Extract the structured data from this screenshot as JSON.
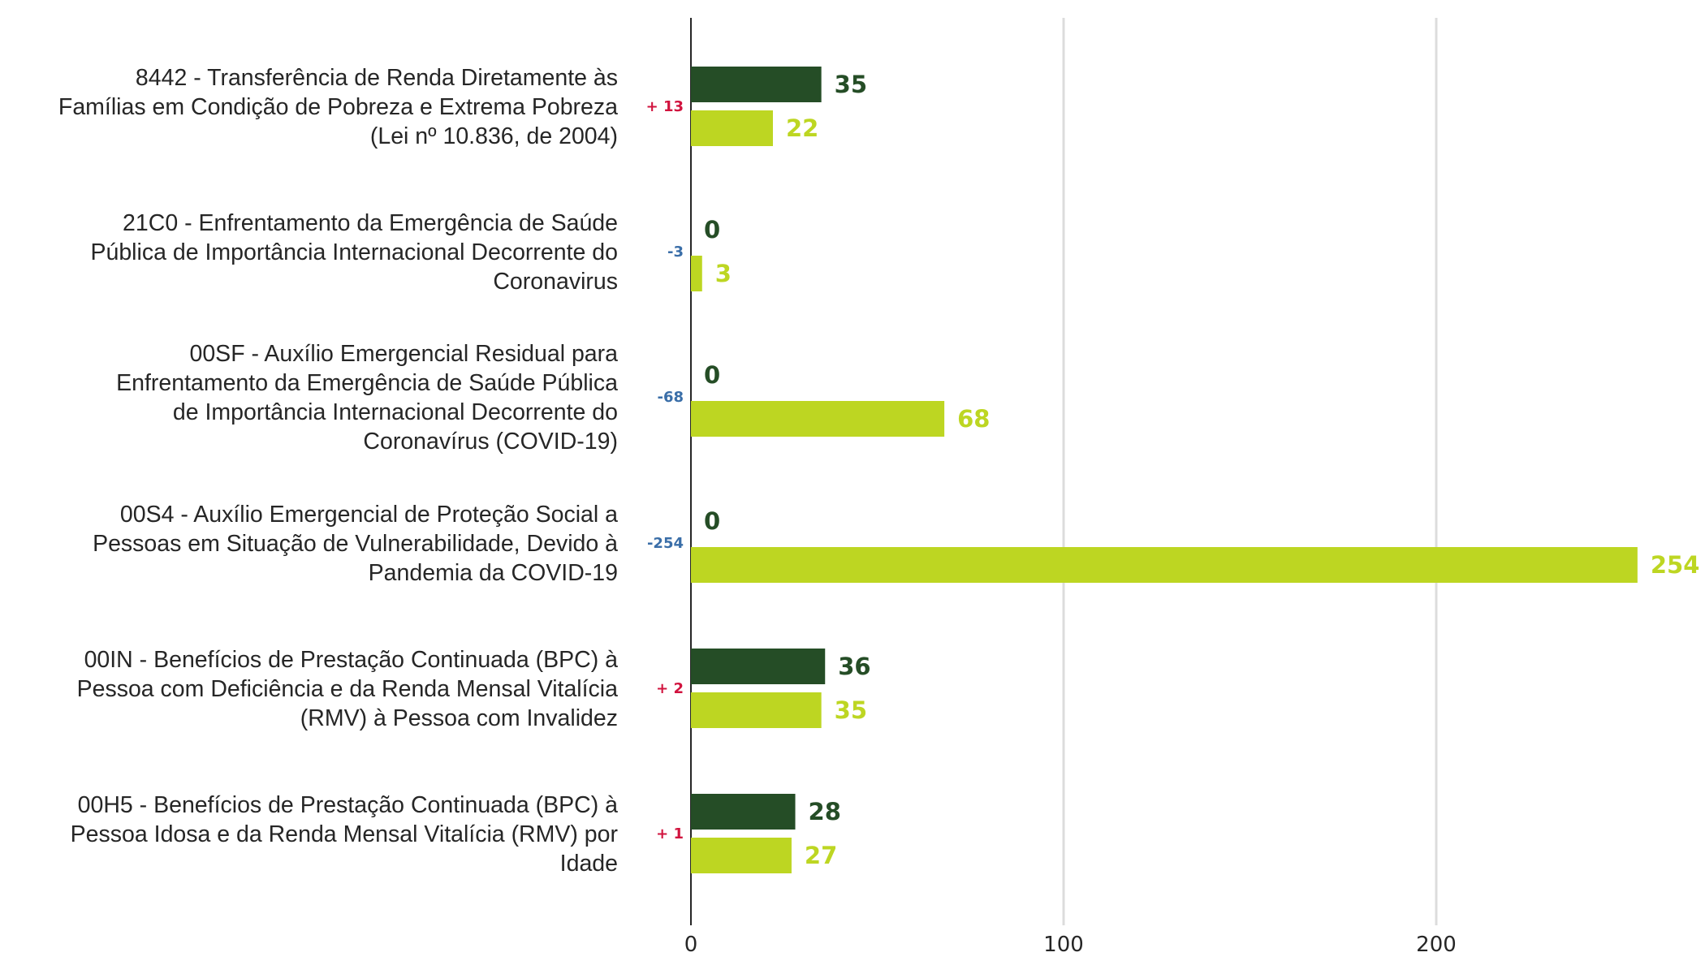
{
  "chart_data": {
    "type": "bar",
    "orientation": "horizontal",
    "xlim": [
      0,
      260
    ],
    "xticks": [
      0,
      100,
      200
    ],
    "grid": true,
    "legend": "none",
    "categories": [
      [
        "8442 - Transferência de Renda Diretamente às",
        "Famílias em Condição de Pobreza e Extrema Pobreza",
        "(Lei nº 10.836, de 2004)"
      ],
      [
        "21C0 - Enfrentamento da Emergência de Saúde",
        "Pública de Importância Internacional Decorrente do",
        "Coronavirus"
      ],
      [
        "00SF - Auxílio Emergencial Residual para",
        "Enfrentamento da Emergência de Saúde Pública",
        "de Importância Internacional Decorrente do",
        "Coronavírus (COVID-19)"
      ],
      [
        "00S4 - Auxílio Emergencial de Proteção Social a",
        "Pessoas em Situação de Vulnerabilidade, Devido à",
        "Pandemia da COVID-19"
      ],
      [
        "00IN - Benefícios de Prestação Continuada (BPC) à",
        "Pessoa com Deficiência e da Renda Mensal Vitalícia",
        "(RMV) à Pessoa com Invalidez"
      ],
      [
        "00H5 - Benefícios de Prestação Continuada (BPC) à",
        "Pessoa Idosa e da Renda Mensal Vitalícia (RMV) por",
        "Idade"
      ]
    ],
    "series": [
      {
        "values": [
          35,
          0,
          0,
          0,
          36,
          28
        ],
        "color": "#254d26"
      },
      {
        "values": [
          22,
          3,
          68,
          254,
          35,
          27
        ],
        "color": "#bdd622"
      }
    ],
    "differences": [
      "+ 13",
      "-3",
      "-68",
      "-254",
      "+ 2",
      "+ 1"
    ],
    "difference_colors": {
      "positive": "#d1133e",
      "negative": "#3a6ea8"
    },
    "gridline_color": "#dcdcdc",
    "axis_color": "#262626"
  }
}
